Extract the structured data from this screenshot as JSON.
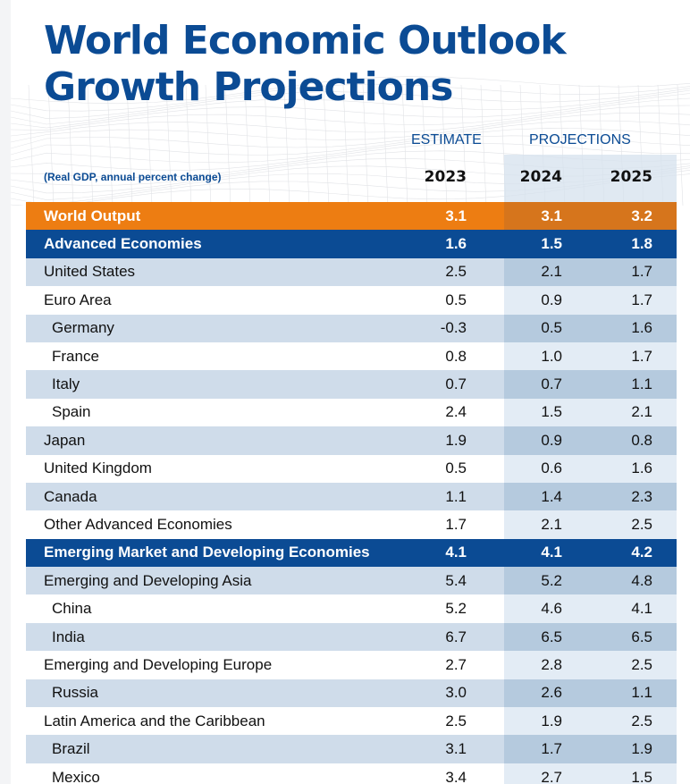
{
  "title": {
    "line1": "World Economic Outlook",
    "line2": "Growth Projections"
  },
  "header": {
    "estimate_label": "ESTIMATE",
    "projections_label": "PROJECTIONS",
    "subtitle": "(Real GDP, annual percent change)",
    "years": [
      "2023",
      "2024",
      "2025"
    ]
  },
  "colors": {
    "brand_blue": "#0b4b94",
    "world_orange": "#ed7d12",
    "row_light": "#cfdcea",
    "projection_band": "#b5cade"
  },
  "rows": [
    {
      "name": "World Output",
      "style": "orange",
      "indent": false,
      "values": [
        "3.1",
        "3.1",
        "3.2"
      ]
    },
    {
      "name": "Advanced Economies",
      "style": "blue",
      "indent": false,
      "values": [
        "1.6",
        "1.5",
        "1.8"
      ]
    },
    {
      "name": "United States",
      "style": "light",
      "indent": false,
      "values": [
        "2.5",
        "2.1",
        "1.7"
      ]
    },
    {
      "name": "Euro Area",
      "style": "white",
      "indent": false,
      "values": [
        "0.5",
        "0.9",
        "1.7"
      ]
    },
    {
      "name": "Germany",
      "style": "light",
      "indent": true,
      "values": [
        "-0.3",
        "0.5",
        "1.6"
      ]
    },
    {
      "name": "France",
      "style": "white",
      "indent": true,
      "values": [
        "0.8",
        "1.0",
        "1.7"
      ]
    },
    {
      "name": "Italy",
      "style": "light",
      "indent": true,
      "values": [
        "0.7",
        "0.7",
        "1.1"
      ]
    },
    {
      "name": "Spain",
      "style": "white",
      "indent": true,
      "values": [
        "2.4",
        "1.5",
        "2.1"
      ]
    },
    {
      "name": "Japan",
      "style": "light",
      "indent": false,
      "values": [
        "1.9",
        "0.9",
        "0.8"
      ]
    },
    {
      "name": "United Kingdom",
      "style": "white",
      "indent": false,
      "values": [
        "0.5",
        "0.6",
        "1.6"
      ]
    },
    {
      "name": "Canada",
      "style": "light",
      "indent": false,
      "values": [
        "1.1",
        "1.4",
        "2.3"
      ]
    },
    {
      "name": "Other Advanced Economies",
      "style": "white",
      "indent": false,
      "values": [
        "1.7",
        "2.1",
        "2.5"
      ]
    },
    {
      "name": "Emerging Market and Developing Economies",
      "style": "blue",
      "indent": false,
      "values": [
        "4.1",
        "4.1",
        "4.2"
      ]
    },
    {
      "name": "Emerging and Developing Asia",
      "style": "light",
      "indent": false,
      "values": [
        "5.4",
        "5.2",
        "4.8"
      ]
    },
    {
      "name": "China",
      "style": "white",
      "indent": true,
      "values": [
        "5.2",
        "4.6",
        "4.1"
      ]
    },
    {
      "name": "India",
      "style": "light",
      "indent": true,
      "values": [
        "6.7",
        "6.5",
        "6.5"
      ]
    },
    {
      "name": "Emerging and Developing Europe",
      "style": "white",
      "indent": false,
      "values": [
        "2.7",
        "2.8",
        "2.5"
      ]
    },
    {
      "name": "Russia",
      "style": "light",
      "indent": true,
      "values": [
        "3.0",
        "2.6",
        "1.1"
      ]
    },
    {
      "name": "Latin America and the Caribbean",
      "style": "white",
      "indent": false,
      "values": [
        "2.5",
        "1.9",
        "2.5"
      ]
    },
    {
      "name": "Brazil",
      "style": "light",
      "indent": true,
      "values": [
        "3.1",
        "1.7",
        "1.9"
      ]
    },
    {
      "name": "Mexico",
      "style": "white",
      "indent": true,
      "values": [
        "3.4",
        "2.7",
        "1.5"
      ]
    }
  ]
}
